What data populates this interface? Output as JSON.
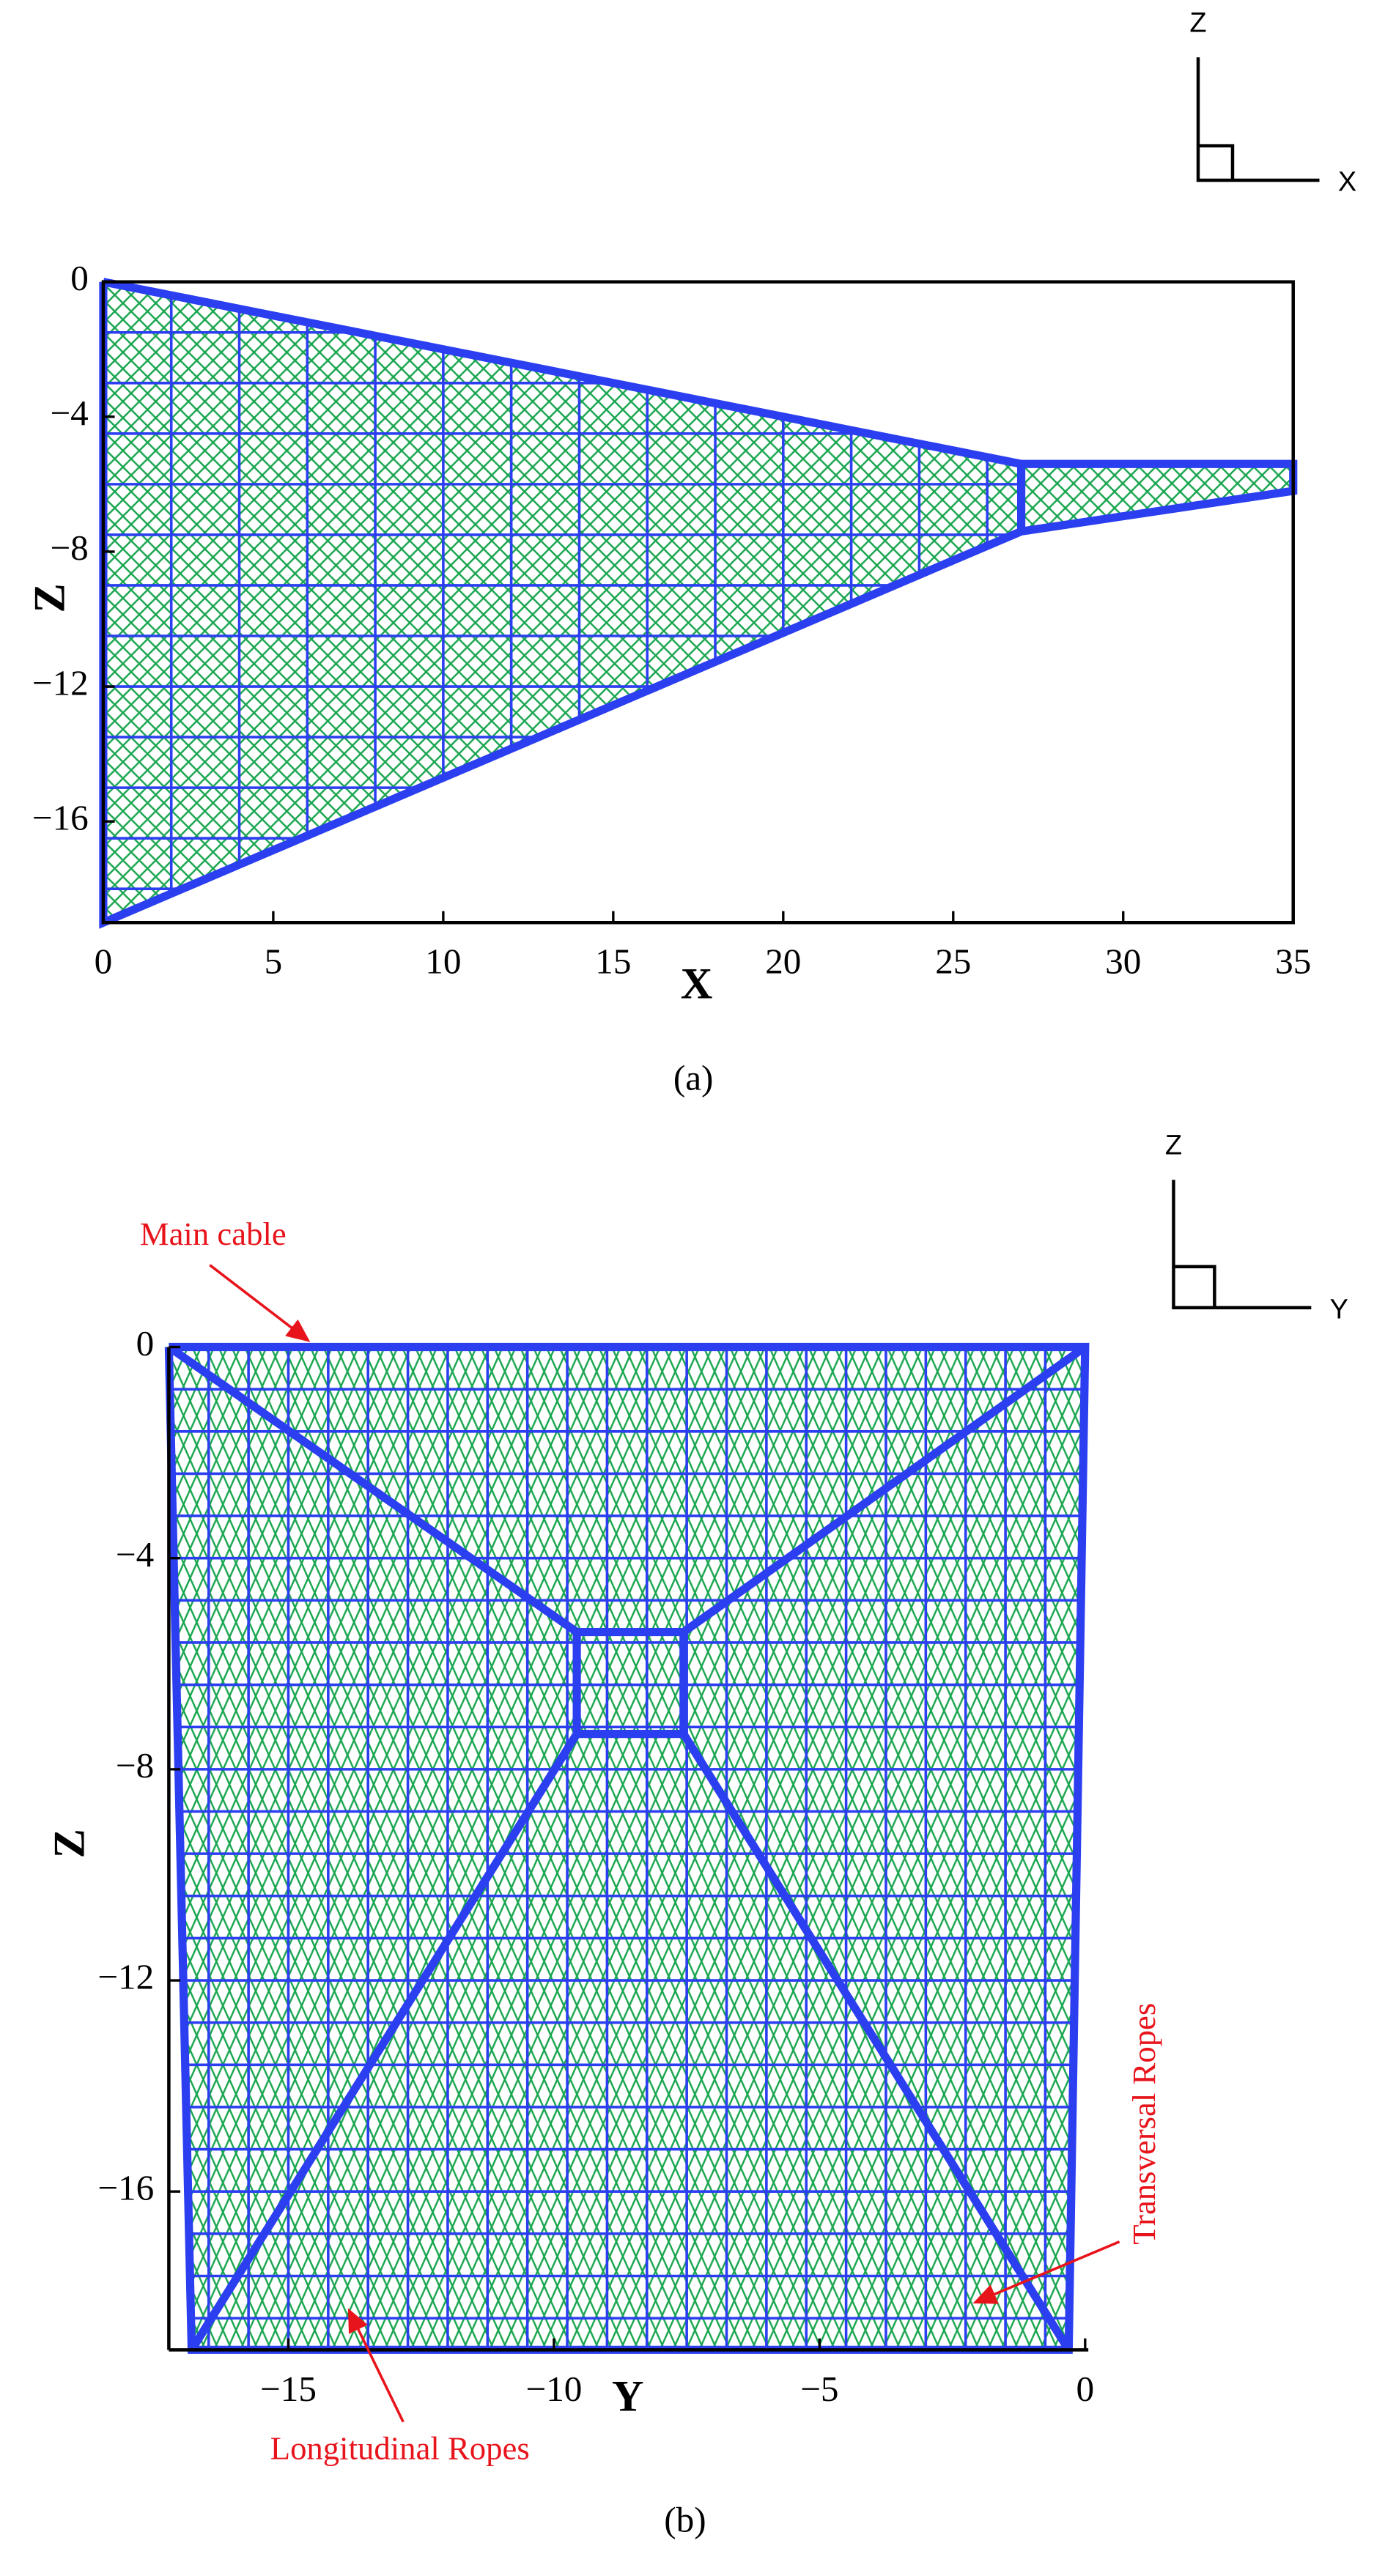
{
  "chart_data": [
    {
      "type": "mesh",
      "caption": "(a)",
      "x_label": "X",
      "y_label": "Z",
      "axis_icon": [
        "Z",
        "X"
      ],
      "frame": "box",
      "xlim": [
        0,
        35
      ],
      "ylim": [
        -19,
        0
      ],
      "xticks": [
        0,
        5,
        10,
        15,
        20,
        25,
        30,
        35
      ],
      "yticks": [
        0,
        {
          "value": -4,
          "label": "−4"
        },
        {
          "value": -8,
          "label": "−8"
        },
        {
          "value": -12,
          "label": "−12"
        },
        {
          "value": -16,
          "label": "−16"
        }
      ],
      "lines": [
        {
          "x": [
            0,
            27,
            35,
            35,
            27,
            0,
            0
          ],
          "y": [
            0,
            -5.4,
            -5.4,
            -6.2,
            -7.4,
            -19,
            0
          ]
        },
        {
          "x": [
            27,
            27
          ],
          "y": [
            -5.4,
            -7.4
          ]
        }
      ],
      "annotations": []
    },
    {
      "type": "mesh",
      "caption": "(b)",
      "x_label": "Y",
      "y_label": "Z",
      "axis_icon": [
        "Z",
        "Y"
      ],
      "frame": "axes",
      "xlim": [
        -17.25,
        0.06
      ],
      "ylim": [
        -19,
        0
      ],
      "xticks": [
        {
          "value": -15,
          "label": "−15"
        },
        {
          "value": -10,
          "label": "−10"
        },
        {
          "value": -5,
          "label": "−5"
        },
        0
      ],
      "yticks": [
        0,
        {
          "value": -4,
          "label": "−4"
        },
        {
          "value": -8,
          "label": "−8"
        },
        {
          "value": -12,
          "label": "−12"
        },
        {
          "value": -16,
          "label": "−16"
        }
      ],
      "lines": [
        {
          "x": [
            -17.25,
            0,
            -0.31,
            -16.82,
            -17.25
          ],
          "y": [
            0,
            0,
            -19,
            -19,
            0
          ]
        },
        {
          "x": [
            -17.25,
            -9.57
          ],
          "y": [
            0,
            -5.4
          ]
        },
        {
          "x": [
            0,
            -7.56
          ],
          "y": [
            0,
            -5.4
          ]
        },
        {
          "x": [
            -16.82,
            -9.57
          ],
          "y": [
            -19,
            -7.33
          ]
        },
        {
          "x": [
            -0.31,
            -7.56
          ],
          "y": [
            -19,
            -7.33
          ]
        },
        {
          "x": [
            -9.57,
            -7.56,
            -7.56,
            -9.57,
            -9.57
          ],
          "y": [
            -5.4,
            -5.4,
            -7.33,
            -7.33,
            -5.4
          ]
        }
      ],
      "annotations": [
        "Main cable",
        "Longitudinal Ropes",
        "Transversal Ropes"
      ]
    }
  ]
}
